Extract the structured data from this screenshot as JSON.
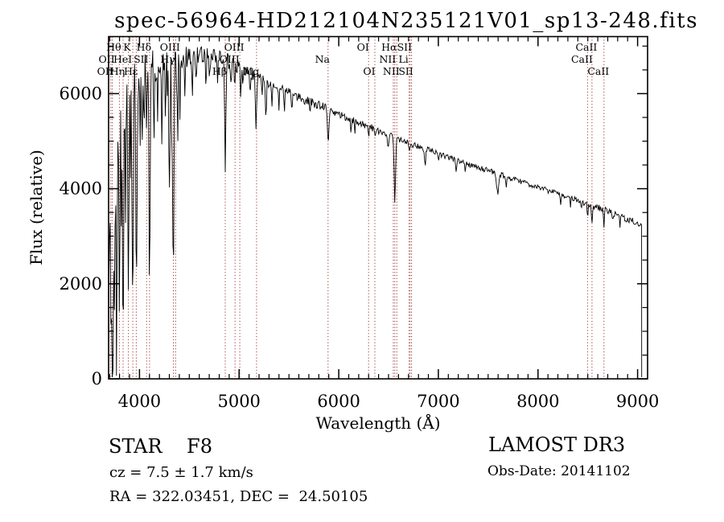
{
  "title": "spec-56964-HD212104N235121V01_sp13-248.fits",
  "annotations": {
    "class_type": "STAR    F8",
    "cz": "cz = 7.5 ± 1.7 km/s",
    "radec": "RA = 322.03451, DEC =  24.50105",
    "survey": "LAMOST DR3",
    "obs_date": "Obs-Date: 20141102"
  },
  "chart_data": {
    "type": "line",
    "title": "spec-56964-HD212104N235121V01_sp13-248.fits",
    "xlabel": "Wavelength (Å)",
    "ylabel": "Flux (relative)",
    "xlim": [
      3690,
      9100
    ],
    "ylim": [
      0,
      7200
    ],
    "xticks": [
      4000,
      5000,
      6000,
      7000,
      8000,
      9000
    ],
    "yticks": [
      0,
      2000,
      4000,
      6000
    ],
    "x_minor_step": 100,
    "y_minor_step": 500,
    "grid": false,
    "line_color": "#000000",
    "marker_color": "#a03434",
    "legend": "none",
    "spectral_lines": [
      {
        "label": "Hθ",
        "wavelength": 3798,
        "row": 1
      },
      {
        "label": "K",
        "wavelength": 3933,
        "row": 1
      },
      {
        "label": "Hδ",
        "wavelength": 4101,
        "row": 1
      },
      {
        "label": "OIII",
        "wavelength": 4363,
        "row": 1
      },
      {
        "label": "OIII",
        "wavelength": 5007,
        "row": 1
      },
      {
        "label": "OI",
        "wavelength": 6300,
        "row": 1
      },
      {
        "label": "Hα",
        "wavelength": 6563,
        "row": 1
      },
      {
        "label": "SII",
        "wavelength": 6716,
        "row": 1
      },
      {
        "label": "CaII",
        "wavelength": 8542,
        "row": 1
      },
      {
        "label": "OII",
        "wavelength": 3727,
        "row": 2
      },
      {
        "label": "HeI",
        "wavelength": 3889,
        "row": 2
      },
      {
        "label": "SII",
        "wavelength": 4072,
        "row": 2
      },
      {
        "label": "Hγ",
        "wavelength": 4340,
        "row": 2
      },
      {
        "label": "OIII",
        "wavelength": 4959,
        "row": 2
      },
      {
        "label": "Na",
        "wavelength": 5893,
        "row": 2
      },
      {
        "label": "NII",
        "wavelength": 6548,
        "row": 2
      },
      {
        "label": "Li",
        "wavelength": 6707,
        "row": 2
      },
      {
        "label": "CaII",
        "wavelength": 8498,
        "row": 2
      },
      {
        "label": "OII",
        "wavelength": 3712,
        "row": 3
      },
      {
        "label": "Hη",
        "wavelength": 3835,
        "row": 3
      },
      {
        "label": "Hε",
        "wavelength": 3970,
        "row": 3
      },
      {
        "label": "Hβ",
        "wavelength": 4861,
        "row": 3
      },
      {
        "label": "Mg",
        "wavelength": 5175,
        "row": 3
      },
      {
        "label": "OI",
        "wavelength": 6363,
        "row": 3
      },
      {
        "label": "NII",
        "wavelength": 6583,
        "row": 3
      },
      {
        "label": "SII",
        "wavelength": 6731,
        "row": 3
      },
      {
        "label": "CaII",
        "wavelength": 8662,
        "row": 3
      }
    ],
    "line_markers": [
      3712,
      3727,
      3798,
      3835,
      3889,
      3933,
      3968,
      4072,
      4101,
      4340,
      4363,
      4861,
      4959,
      5007,
      5175,
      5893,
      6300,
      6363,
      6548,
      6563,
      6583,
      6707,
      6716,
      6731,
      8498,
      8542,
      8662
    ],
    "continuum": [
      [
        3690,
        4300
      ],
      [
        3720,
        5300
      ],
      [
        3780,
        6000
      ],
      [
        3850,
        6350
      ],
      [
        3950,
        6500
      ],
      [
        4050,
        6600
      ],
      [
        4150,
        6600
      ],
      [
        4250,
        6650
      ],
      [
        4350,
        6700
      ],
      [
        4450,
        6760
      ],
      [
        4550,
        6800
      ],
      [
        4650,
        6820
      ],
      [
        4750,
        6790
      ],
      [
        4850,
        6730
      ],
      [
        4950,
        6610
      ],
      [
        5050,
        6490
      ],
      [
        5175,
        6380
      ],
      [
        5300,
        6230
      ],
      [
        5400,
        6130
      ],
      [
        5500,
        6020
      ],
      [
        5600,
        5920
      ],
      [
        5700,
        5840
      ],
      [
        5800,
        5760
      ],
      [
        5900,
        5680
      ],
      [
        6000,
        5570
      ],
      [
        6100,
        5480
      ],
      [
        6200,
        5390
      ],
      [
        6300,
        5310
      ],
      [
        6400,
        5220
      ],
      [
        6500,
        5130
      ],
      [
        6600,
        5040
      ],
      [
        6700,
        4960
      ],
      [
        6800,
        4890
      ],
      [
        6900,
        4820
      ],
      [
        7000,
        4740
      ],
      [
        7100,
        4660
      ],
      [
        7200,
        4590
      ],
      [
        7300,
        4510
      ],
      [
        7400,
        4440
      ],
      [
        7500,
        4380
      ],
      [
        7600,
        4310
      ],
      [
        7700,
        4240
      ],
      [
        7800,
        4170
      ],
      [
        7900,
        4100
      ],
      [
        8000,
        4030
      ],
      [
        8100,
        3960
      ],
      [
        8200,
        3890
      ],
      [
        8300,
        3820
      ],
      [
        8400,
        3750
      ],
      [
        8500,
        3680
      ],
      [
        8600,
        3610
      ],
      [
        8700,
        3530
      ],
      [
        8800,
        3450
      ],
      [
        8900,
        3360
      ],
      [
        9000,
        3270
      ],
      [
        9040,
        3230
      ]
    ],
    "absorption_lines": [
      [
        3697,
        2600,
        5
      ],
      [
        3712,
        3200,
        5
      ],
      [
        3727,
        4400,
        6
      ],
      [
        3737,
        3000,
        5
      ],
      [
        3750,
        4800,
        5
      ],
      [
        3770,
        5300,
        5
      ],
      [
        3798,
        4200,
        6
      ],
      [
        3820,
        2600,
        5
      ],
      [
        3835,
        5900,
        5
      ],
      [
        3860,
        2400,
        4
      ],
      [
        3889,
        4400,
        6
      ],
      [
        3910,
        2000,
        4
      ],
      [
        3933,
        5000,
        6
      ],
      [
        3970,
        4600,
        7
      ],
      [
        4005,
        1500,
        4
      ],
      [
        4026,
        1900,
        5
      ],
      [
        4045,
        1300,
        4
      ],
      [
        4072,
        1600,
        4
      ],
      [
        4101,
        4300,
        6
      ],
      [
        4144,
        1600,
        4
      ],
      [
        4180,
        1100,
        4
      ],
      [
        4226,
        1900,
        4
      ],
      [
        4260,
        1300,
        4
      ],
      [
        4300,
        2600,
        6
      ],
      [
        4325,
        1800,
        4
      ],
      [
        4340,
        4400,
        6
      ],
      [
        4383,
        1900,
        4
      ],
      [
        4405,
        1300,
        4
      ],
      [
        4455,
        900,
        4
      ],
      [
        4530,
        800,
        4
      ],
      [
        4570,
        600,
        4
      ],
      [
        4668,
        800,
        4
      ],
      [
        4703,
        600,
        4
      ],
      [
        4785,
        500,
        4
      ],
      [
        4861,
        2400,
        6
      ],
      [
        4920,
        700,
        4
      ],
      [
        4957,
        500,
        4
      ],
      [
        5015,
        600,
        4
      ],
      [
        5040,
        400,
        4
      ],
      [
        5110,
        500,
        4
      ],
      [
        5170,
        1100,
        6
      ],
      [
        5230,
        500,
        4
      ],
      [
        5270,
        800,
        5
      ],
      [
        5328,
        500,
        4
      ],
      [
        5400,
        400,
        4
      ],
      [
        5455,
        350,
        4
      ],
      [
        5528,
        400,
        4
      ],
      [
        5711,
        250,
        4
      ],
      [
        5893,
        750,
        7
      ],
      [
        6122,
        250,
        4
      ],
      [
        6162,
        250,
        4
      ],
      [
        6300,
        180,
        4
      ],
      [
        6363,
        120,
        4
      ],
      [
        6495,
        350,
        5
      ],
      [
        6563,
        1350,
        7
      ],
      [
        6710,
        150,
        4
      ],
      [
        6867,
        400,
        6
      ],
      [
        7000,
        150,
        4
      ],
      [
        7180,
        250,
        6
      ],
      [
        7270,
        200,
        5
      ],
      [
        7594,
        420,
        9
      ],
      [
        7680,
        200,
        5
      ],
      [
        8227,
        200,
        5
      ],
      [
        8327,
        150,
        4
      ],
      [
        8434,
        200,
        4
      ],
      [
        8498,
        280,
        5
      ],
      [
        8542,
        380,
        5
      ],
      [
        8662,
        330,
        5
      ],
      [
        8750,
        200,
        4
      ],
      [
        8824,
        200,
        4
      ]
    ],
    "noise_profile": [
      [
        3690,
        1050
      ],
      [
        3750,
        800
      ],
      [
        3800,
        630
      ],
      [
        3900,
        520
      ],
      [
        4000,
        430
      ],
      [
        4100,
        380
      ],
      [
        4200,
        330
      ],
      [
        4300,
        300
      ],
      [
        4400,
        260
      ],
      [
        4500,
        230
      ],
      [
        4700,
        190
      ],
      [
        4900,
        160
      ],
      [
        5100,
        140
      ],
      [
        5300,
        120
      ],
      [
        5500,
        105
      ],
      [
        5700,
        95
      ],
      [
        5900,
        88
      ],
      [
        6100,
        80
      ],
      [
        6300,
        74
      ],
      [
        6500,
        70
      ],
      [
        6700,
        64
      ],
      [
        7000,
        60
      ],
      [
        7300,
        57
      ],
      [
        7600,
        60
      ],
      [
        7900,
        54
      ],
      [
        8200,
        58
      ],
      [
        8500,
        64
      ],
      [
        8800,
        70
      ],
      [
        9040,
        78
      ]
    ],
    "sample_step": 7,
    "cutoff": {
      "start": 3690,
      "end": 9040,
      "edge_flux": 35
    }
  }
}
